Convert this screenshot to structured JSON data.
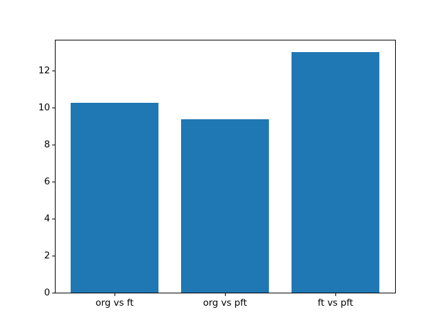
{
  "chart_data": {
    "type": "bar",
    "categories": [
      "org vs ft",
      "org vs pft",
      "ft vs pft"
    ],
    "x": [
      0,
      1,
      2
    ],
    "values": [
      10.25,
      9.35,
      13.0
    ],
    "title": "",
    "xlabel": "",
    "ylabel": "",
    "ylim": [
      0,
      13.65
    ],
    "xlim": [
      -0.54,
      2.54
    ],
    "yticks": [
      0,
      2,
      4,
      6,
      8,
      10,
      12
    ],
    "bar_width": 0.8,
    "bar_color": "#1f77b4",
    "axis_color": "#000000",
    "background_color": "#ffffff",
    "grid": false,
    "legend": null
  }
}
